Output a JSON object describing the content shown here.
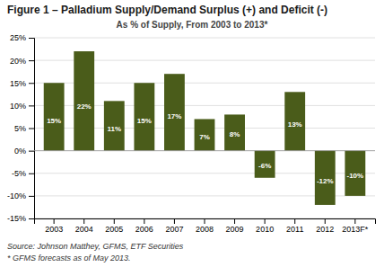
{
  "chart_data": {
    "type": "bar",
    "title": "Figure 1 – Palladium Supply/Demand Surplus (+) and Deficit (-)",
    "subtitle": "As % of Supply, From 2003 to 2013*",
    "categories": [
      "2003",
      "2004",
      "2005",
      "2006",
      "2007",
      "2008",
      "2009",
      "2010",
      "2011",
      "2012",
      "2013F*"
    ],
    "values": [
      15,
      22,
      11,
      15,
      17,
      7,
      8,
      -6,
      13,
      -12,
      -10
    ],
    "value_labels": [
      "15%",
      "22%",
      "11%",
      "15%",
      "17%",
      "7%",
      "8%",
      "-6%",
      "13%",
      "-12%",
      "-10%"
    ],
    "data_labels": true,
    "color": "#4a5c1a",
    "ylim": [
      -15,
      25
    ],
    "yticks": [
      {
        "value": -15,
        "label": "-15%"
      },
      {
        "value": -10,
        "label": "-10%"
      },
      {
        "value": -5,
        "label": "-5%"
      },
      {
        "value": 0,
        "label": "0%"
      },
      {
        "value": 5,
        "label": "5%"
      },
      {
        "value": 10,
        "label": "10%"
      },
      {
        "value": 15,
        "label": "15%"
      },
      {
        "value": 20,
        "label": "20%"
      },
      {
        "value": 25,
        "label": "25%"
      }
    ],
    "grid": true,
    "annotations": [
      "Source: Johnson Matthey, GFMS, ETF Securities",
      "* GFMS forecasts as of May 2013."
    ]
  }
}
